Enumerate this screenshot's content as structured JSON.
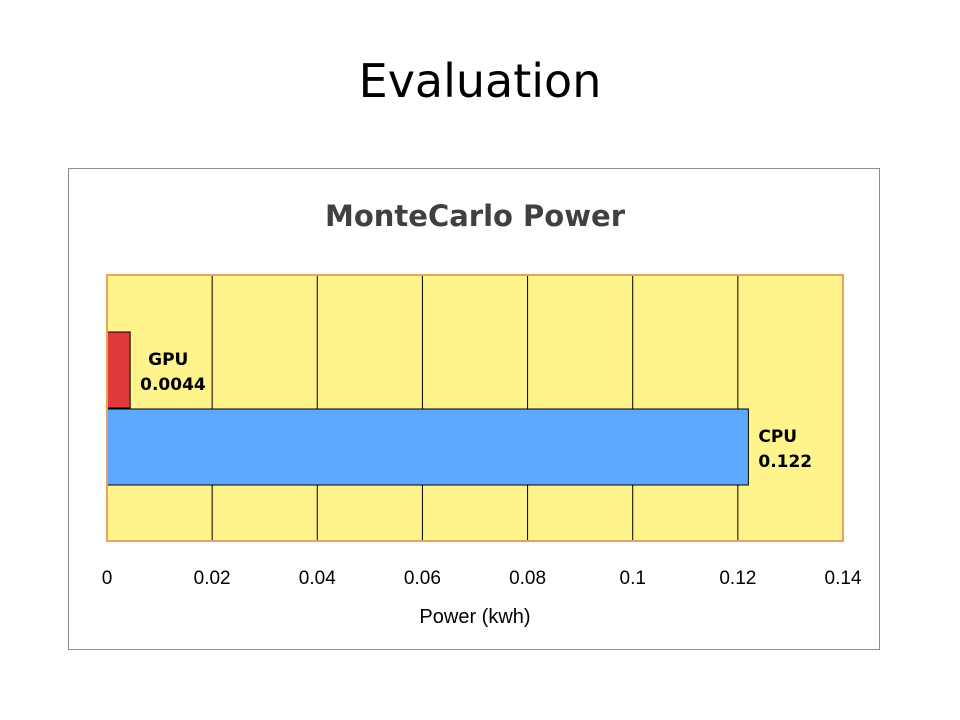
{
  "slide": {
    "title": "Evaluation"
  },
  "colors": {
    "plot_background": "#FFF38C",
    "gridline": "#000000",
    "plot_border": "#E8A25A",
    "gpu_bar": "#E1383B",
    "cpu_bar": "#5FA8FF"
  },
  "chart_data": {
    "type": "bar",
    "orientation": "horizontal",
    "title": "MonteCarlo Power",
    "xlabel": "Power (kwh)",
    "ylabel": "",
    "xlim": [
      0,
      0.14
    ],
    "xticks": [
      0,
      0.02,
      0.04,
      0.06,
      0.08,
      0.1,
      0.12,
      0.14
    ],
    "xtick_labels": [
      "0",
      "0.02",
      "0.04",
      "0.06",
      "0.08",
      "0.1",
      "0.12",
      "0.14"
    ],
    "grid": {
      "vertical": true,
      "horizontal": false
    },
    "legend": "none",
    "bars": [
      {
        "name": "GPU",
        "value": 0.0044,
        "label": "0.0044"
      },
      {
        "name": "CPU",
        "value": 0.122,
        "label": "0.122"
      }
    ]
  }
}
